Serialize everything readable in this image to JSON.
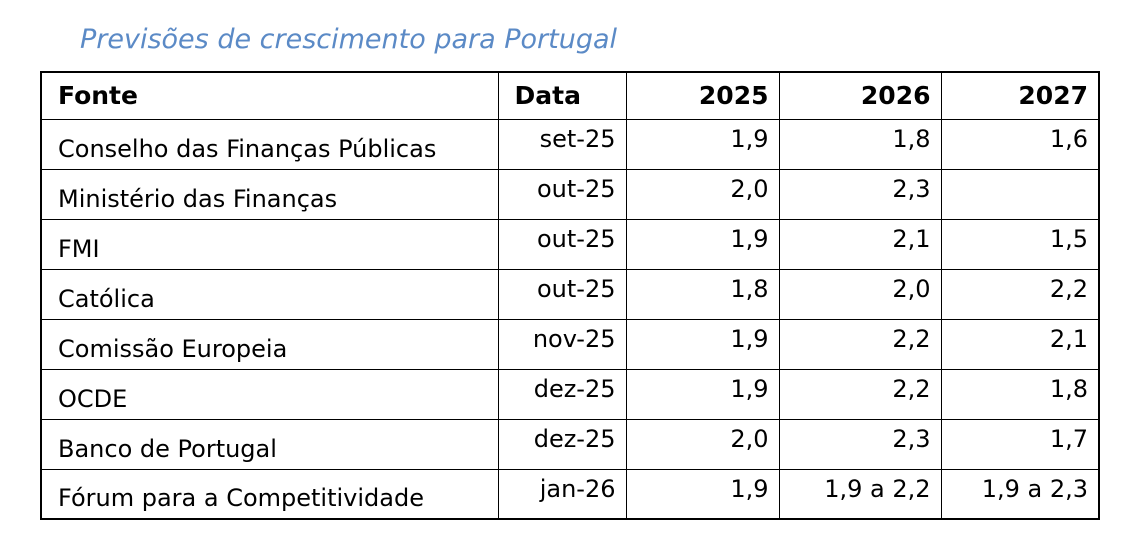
{
  "title": "Previsões de crescimento para Portugal",
  "colors": {
    "title_text": "#5b8ac6",
    "table_border": "#000000",
    "body_text": "#000000",
    "background": "#ffffff"
  },
  "chart_data": {
    "type": "table",
    "title": "Previsões de crescimento para Portugal",
    "columns": [
      "Fonte",
      "Data",
      "2025",
      "2026",
      "2027"
    ],
    "rows": [
      [
        "Conselho das Finanças Públicas",
        "set-25",
        "1,9",
        "1,8",
        "1,6"
      ],
      [
        "Ministério das Finanças",
        "out-25",
        "2,0",
        "2,3",
        ""
      ],
      [
        "FMI",
        "out-25",
        "1,9",
        "2,1",
        "1,5"
      ],
      [
        "Católica",
        "out-25",
        "1,8",
        "2,0",
        "2,2"
      ],
      [
        "Comissão Europeia",
        "nov-25",
        "1,9",
        "2,2",
        "2,1"
      ],
      [
        "OCDE",
        "dez-25",
        "1,9",
        "2,2",
        "1,8"
      ],
      [
        "Banco de Portugal",
        "dez-25",
        "2,0",
        "2,3",
        "1,7"
      ],
      [
        "Fórum para a Competitividade",
        "jan-26",
        "1,9",
        "1,9 a 2,2",
        "1,9 a 2,3"
      ]
    ]
  }
}
